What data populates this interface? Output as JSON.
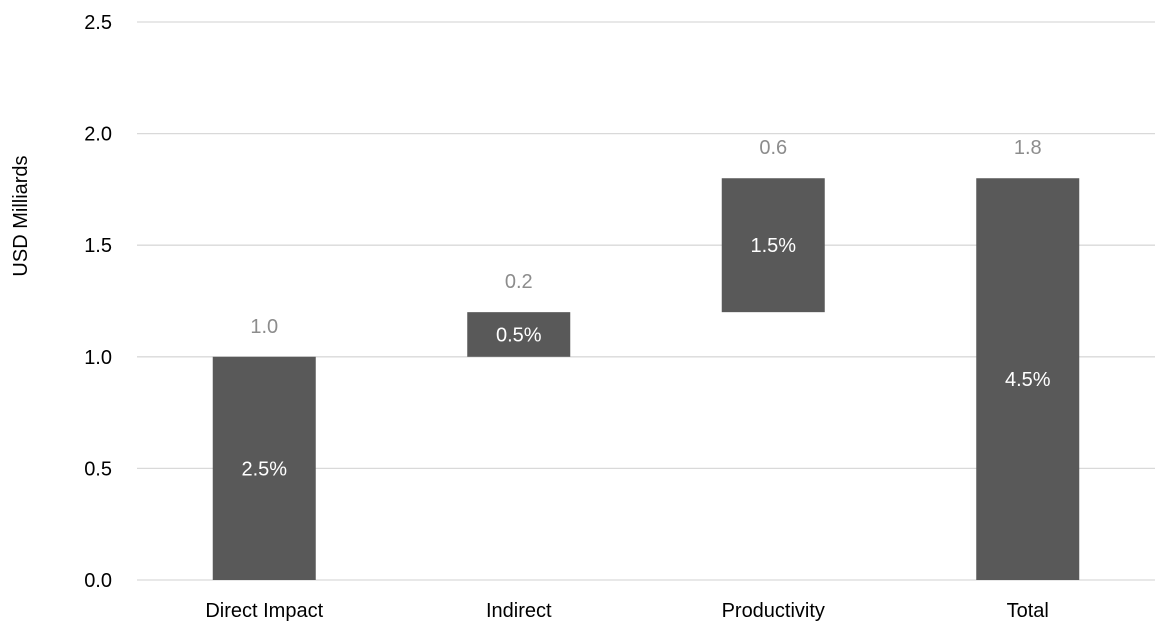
{
  "chart_data": {
    "type": "bar",
    "subtype": "waterfall",
    "title": "",
    "xlabel": "",
    "ylabel": "USD Milliards",
    "ylim": [
      0,
      2.5
    ],
    "yticks": [
      "0.0",
      "0.5",
      "1.0",
      "1.5",
      "2.0",
      "2.5"
    ],
    "grid": true,
    "legend": "none",
    "categories": [
      "Direct Impact",
      "Indirect",
      "Productivity",
      "Total"
    ],
    "bars": [
      {
        "category": "Direct Impact",
        "base": 0.0,
        "top": 1.0,
        "value_label": "1.0",
        "inner_label": "2.5%"
      },
      {
        "category": "Indirect",
        "base": 1.0,
        "top": 1.2,
        "value_label": "0.2",
        "inner_label": "0.5%"
      },
      {
        "category": "Productivity",
        "base": 1.2,
        "top": 1.8,
        "value_label": "0.6",
        "inner_label": "1.5%"
      },
      {
        "category": "Total",
        "base": 0.0,
        "top": 1.8,
        "value_label": "1.8",
        "inner_label": "4.5%"
      }
    ],
    "colors": {
      "bar": "#595959",
      "grid": "#d9d9d9",
      "value_label": "#8c8c8c",
      "inner_label": "#ffffff"
    }
  }
}
